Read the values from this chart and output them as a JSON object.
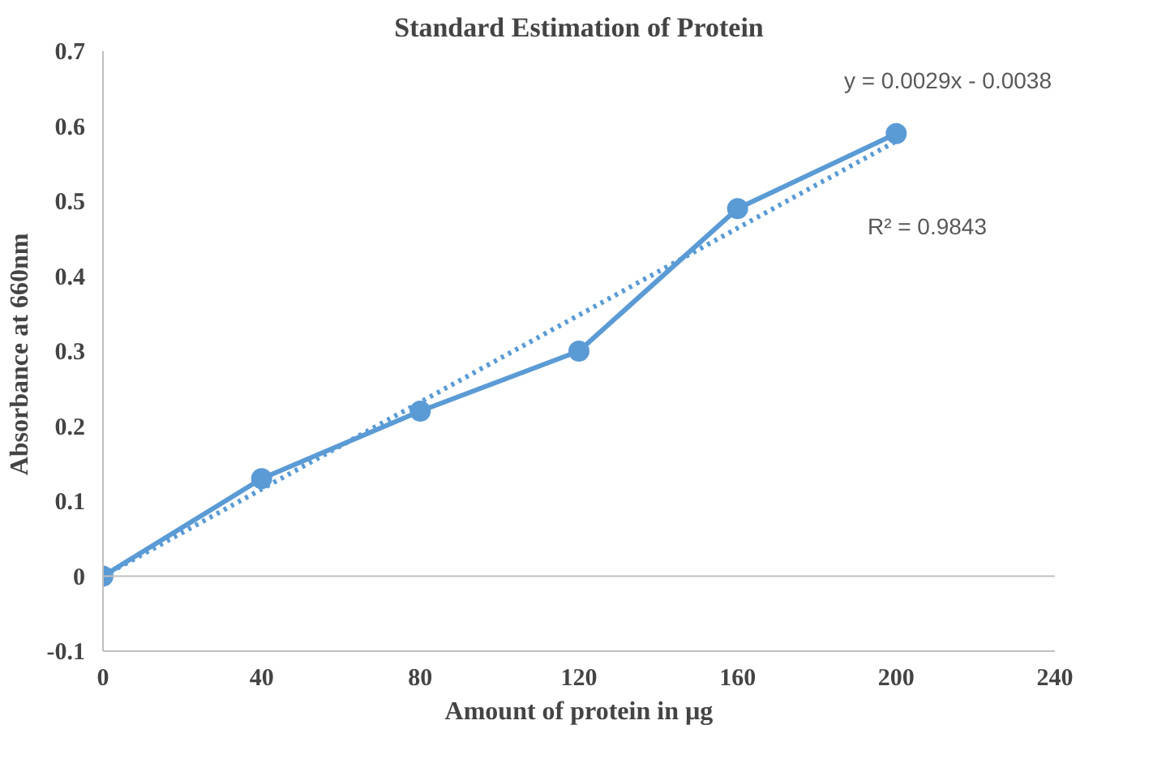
{
  "chart_data": {
    "type": "line",
    "title": "Standard Estimation of Protein",
    "xlabel": "Amount of protein in µg",
    "ylabel": "Absorbance  at 660nm",
    "series": [
      {
        "color": "#5b9bd5",
        "x": [
          0,
          40,
          80,
          120,
          160,
          200
        ],
        "values": [
          0,
          0.13,
          0.22,
          0.3,
          0.49,
          0.59
        ],
        "marker": "circle",
        "line_style": "solid"
      },
      {
        "type": "line",
        "color": "#5b9bd5",
        "x": [
          0,
          200
        ],
        "values": [
          0,
          0.58
        ],
        "marker": "none",
        "line_style": "dotted"
      }
    ],
    "annotations": [
      "y = 0.0029x - 0.0038",
      "R² = 0.9843"
    ],
    "ref_lines": [
      {
        "axis": "y",
        "value": 0,
        "color": "#bfbfbf"
      }
    ],
    "xlim": [
      0,
      240
    ],
    "xticks": [
      0,
      40,
      80,
      120,
      160,
      200,
      240
    ],
    "ylim": [
      -0.1,
      0.7
    ],
    "yticks": [
      -0.1,
      0,
      0.1,
      0.2,
      0.3,
      0.4,
      0.5,
      0.6,
      0.7
    ],
    "grid": false
  }
}
